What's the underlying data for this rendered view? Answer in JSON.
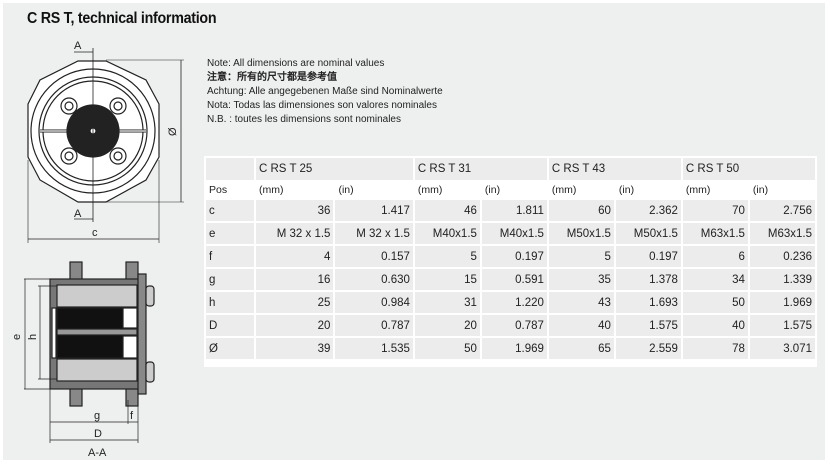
{
  "title": "C RS T, technical information",
  "notes": [
    "Note: All dimensions are nominal values",
    "注意：所有的尺寸都是参考值",
    "Achtung: Alle angegebenen Maße sind Nominalwerte",
    "Nota: Todas las dimensiones son valores nominales",
    "N.B. : toutes les dimensions sont nominales"
  ],
  "drawing_labels": {
    "section_mark": "A",
    "diameter": "Ø",
    "c": "c",
    "e": "e",
    "h": "h",
    "g": "g",
    "f": "f",
    "D": "D",
    "section_title": "A-A"
  },
  "table": {
    "pos_header": "Pos",
    "models": [
      "C RS T 25",
      "C RS T 31",
      "C RS T 43",
      "C RS T 50"
    ],
    "units": [
      "(mm)",
      "(in)"
    ],
    "rows": [
      {
        "pos": "c",
        "values": [
          "36",
          "1.417",
          "46",
          "1.811",
          "60",
          "2.362",
          "70",
          "2.756"
        ]
      },
      {
        "pos": "e",
        "values": [
          "M 32 x 1.5",
          "M 32 x 1.5",
          "M40x1.5",
          "M40x1.5",
          "M50x1.5",
          "M50x1.5",
          "M63x1.5",
          "M63x1.5"
        ]
      },
      {
        "pos": "f",
        "values": [
          "4",
          "0.157",
          "5",
          "0.197",
          "5",
          "0.197",
          "6",
          "0.236"
        ]
      },
      {
        "pos": "g",
        "values": [
          "16",
          "0.630",
          "15",
          "0.591",
          "35",
          "1.378",
          "34",
          "1.339"
        ]
      },
      {
        "pos": "h",
        "values": [
          "25",
          "0.984",
          "31",
          "1.220",
          "43",
          "1.693",
          "50",
          "1.969"
        ]
      },
      {
        "pos": "D",
        "values": [
          "20",
          "0.787",
          "20",
          "0.787",
          "40",
          "1.575",
          "40",
          "1.575"
        ]
      },
      {
        "pos": "Ø",
        "values": [
          "39",
          "1.535",
          "50",
          "1.969",
          "65",
          "2.559",
          "78",
          "3.071"
        ]
      }
    ]
  }
}
